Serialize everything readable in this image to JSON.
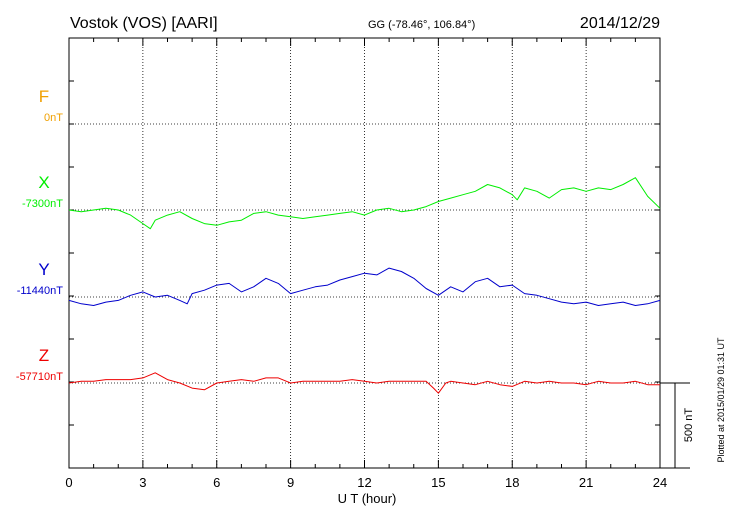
{
  "header": {
    "station": "Vostok (VOS)  [AARI]",
    "coords": "GG (-78.46°, 106.84°)",
    "date": "2014/12/29"
  },
  "footer_note": "Plotted at 2015/01/29 01:31  UT",
  "scale_bar": {
    "label": "500 nT",
    "value_nT": 500
  },
  "chart_data": {
    "type": "line",
    "title": "",
    "xlabel": "U T (hour)",
    "xlim": [
      0,
      24
    ],
    "x_ticks": [
      "0",
      "3",
      "6",
      "9",
      "12",
      "15",
      "18",
      "21",
      "24"
    ],
    "grid": true,
    "series": [
      {
        "name": "F",
        "baseline_label": "0nT",
        "baseline": 0,
        "color": "#f0a000",
        "x": [],
        "y": []
      },
      {
        "name": "X",
        "baseline_label": "-7300nT",
        "baseline": -7300,
        "color": "#00ee00",
        "x": [
          0,
          0.5,
          1.0,
          1.5,
          2.0,
          2.5,
          3.0,
          3.3,
          3.5,
          4.0,
          4.5,
          5.0,
          5.5,
          6.0,
          6.5,
          7.0,
          7.5,
          8.0,
          8.5,
          9.0,
          9.5,
          10.0,
          10.5,
          11.0,
          11.5,
          12.0,
          12.5,
          13.0,
          13.5,
          14.0,
          14.5,
          15.0,
          15.5,
          16.0,
          16.5,
          17.0,
          17.5,
          18.0,
          18.2,
          18.5,
          19.0,
          19.5,
          20.0,
          20.5,
          21.0,
          21.5,
          22.0,
          22.5,
          23.0,
          23.5,
          24.0
        ],
        "y": [
          -7300,
          -7310,
          -7300,
          -7290,
          -7300,
          -7330,
          -7380,
          -7410,
          -7360,
          -7330,
          -7310,
          -7350,
          -7380,
          -7390,
          -7370,
          -7360,
          -7320,
          -7310,
          -7330,
          -7340,
          -7350,
          -7340,
          -7330,
          -7320,
          -7310,
          -7330,
          -7300,
          -7290,
          -7310,
          -7300,
          -7280,
          -7250,
          -7230,
          -7210,
          -7190,
          -7150,
          -7170,
          -7210,
          -7240,
          -7170,
          -7190,
          -7230,
          -7180,
          -7170,
          -7190,
          -7170,
          -7180,
          -7150,
          -7110,
          -7220,
          -7290
        ]
      },
      {
        "name": "Y",
        "baseline_label": "-11440nT",
        "baseline": -11440,
        "color": "#0000cc",
        "x": [
          0,
          0.5,
          1.0,
          1.5,
          2.0,
          2.5,
          3.0,
          3.5,
          4.0,
          4.5,
          4.8,
          5.0,
          5.5,
          6.0,
          6.5,
          7.0,
          7.5,
          8.0,
          8.5,
          9.0,
          9.5,
          10.0,
          10.5,
          11.0,
          11.5,
          12.0,
          12.5,
          13.0,
          13.5,
          14.0,
          14.5,
          15.0,
          15.5,
          16.0,
          16.5,
          17.0,
          17.5,
          18.0,
          18.5,
          19.0,
          19.5,
          20.0,
          20.5,
          21.0,
          21.5,
          22.0,
          22.5,
          23.0,
          23.5,
          24.0
        ],
        "y": [
          -11460,
          -11480,
          -11490,
          -11470,
          -11460,
          -11430,
          -11410,
          -11440,
          -11430,
          -11460,
          -11480,
          -11420,
          -11400,
          -11370,
          -11360,
          -11410,
          -11380,
          -11330,
          -11360,
          -11420,
          -11400,
          -11380,
          -11370,
          -11340,
          -11320,
          -11300,
          -11310,
          -11270,
          -11290,
          -11330,
          -11390,
          -11430,
          -11380,
          -11410,
          -11350,
          -11330,
          -11380,
          -11370,
          -11420,
          -11430,
          -11450,
          -11470,
          -11480,
          -11470,
          -11490,
          -11480,
          -11470,
          -11490,
          -11480,
          -11460
        ]
      },
      {
        "name": "Z",
        "baseline_label": "-57710nT",
        "baseline": -57710,
        "color": "#ee0000",
        "x": [
          0,
          0.5,
          1.0,
          1.5,
          2.0,
          2.5,
          3.0,
          3.5,
          4.0,
          4.5,
          5.0,
          5.5,
          6.0,
          6.5,
          7.0,
          7.5,
          8.0,
          8.5,
          9.0,
          9.5,
          10.0,
          10.5,
          11.0,
          11.5,
          12.0,
          12.5,
          13.0,
          13.5,
          14.0,
          14.5,
          14.8,
          15.0,
          15.3,
          15.5,
          16.0,
          16.5,
          17.0,
          17.5,
          18.0,
          18.5,
          19.0,
          19.5,
          20.0,
          20.5,
          21.0,
          21.5,
          22.0,
          22.5,
          23.0,
          23.5,
          24.0
        ],
        "y": [
          -57710,
          -57700,
          -57700,
          -57690,
          -57690,
          -57690,
          -57680,
          -57650,
          -57690,
          -57710,
          -57740,
          -57750,
          -57710,
          -57700,
          -57690,
          -57700,
          -57680,
          -57680,
          -57710,
          -57700,
          -57700,
          -57700,
          -57700,
          -57690,
          -57700,
          -57710,
          -57700,
          -57700,
          -57700,
          -57700,
          -57740,
          -57770,
          -57710,
          -57700,
          -57710,
          -57720,
          -57700,
          -57720,
          -57730,
          -57700,
          -57710,
          -57700,
          -57710,
          -57710,
          -57720,
          -57700,
          -57710,
          -57710,
          -57700,
          -57720,
          -57720
        ]
      }
    ]
  }
}
